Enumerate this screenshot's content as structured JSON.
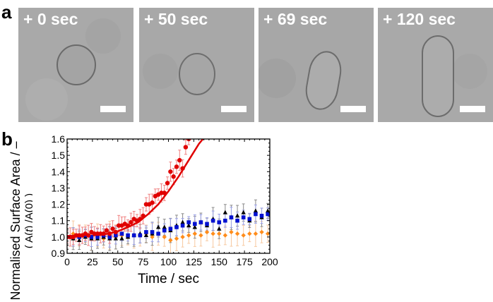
{
  "panel_a": {
    "label": "a",
    "frames": [
      {
        "time_label": "+ 0 sec",
        "shape": "round"
      },
      {
        "time_label": "+ 50 sec",
        "shape": "oval"
      },
      {
        "time_label": "+ 69 sec",
        "shape": "elongated"
      },
      {
        "time_label": "+ 120 sec",
        "shape": "rod"
      }
    ],
    "scale_bar": "white bar (unlabelled)"
  },
  "panel_b": {
    "label": "b",
    "ylabel_line1": "Normalised Surface Area / –",
    "ylabel_line2": "( A(t) /A(0) )",
    "xlabel": "Time / sec"
  },
  "chart_data": {
    "type": "scatter",
    "title": "",
    "xlabel": "Time / sec",
    "ylabel": "Normalised Surface Area / – ( A(t)/A(0) )",
    "xlim": [
      0,
      200
    ],
    "ylim": [
      0.9,
      1.6
    ],
    "xticks": [
      0,
      25,
      50,
      75,
      100,
      125,
      150,
      175,
      200
    ],
    "yticks": [
      0.9,
      1.0,
      1.1,
      1.2,
      1.3,
      1.4,
      1.5,
      1.6
    ],
    "grid": false,
    "legend": "none",
    "series": [
      {
        "name": "red (growing vesicle)",
        "color": "#e00000",
        "marker": "circle",
        "x": [
          0,
          3,
          6,
          9,
          12,
          15,
          18,
          21,
          24,
          27,
          30,
          33,
          36,
          39,
          42,
          45,
          48,
          51,
          54,
          57,
          60,
          63,
          66,
          69,
          72,
          75,
          78,
          81,
          84,
          87,
          90,
          93,
          96,
          99,
          102,
          105,
          108,
          111,
          114,
          117,
          120
        ],
        "y": [
          1.0,
          1.0,
          1.0,
          1.01,
          1.01,
          1.01,
          1.02,
          1.01,
          1.03,
          1.02,
          1.02,
          1.02,
          1.02,
          1.04,
          1.02,
          1.05,
          1.03,
          1.07,
          1.07,
          1.08,
          1.07,
          1.09,
          1.11,
          1.1,
          1.11,
          1.13,
          1.2,
          1.2,
          1.21,
          1.25,
          1.26,
          1.27,
          1.27,
          1.33,
          1.4,
          1.37,
          1.43,
          1.47,
          1.42,
          1.55,
          1.6
        ]
      },
      {
        "name": "red fit",
        "color": "#e00000",
        "type": "line",
        "x": [
          0,
          20,
          40,
          50,
          60,
          70,
          80,
          90,
          100,
          110,
          120,
          130,
          134
        ],
        "y": [
          1.0,
          1.005,
          1.02,
          1.035,
          1.06,
          1.09,
          1.14,
          1.2,
          1.28,
          1.37,
          1.47,
          1.57,
          1.6
        ]
      },
      {
        "name": "blue",
        "color": "#0010d0",
        "marker": "square",
        "x": [
          0,
          6,
          12,
          18,
          24,
          30,
          36,
          42,
          48,
          54,
          60,
          66,
          72,
          78,
          84,
          90,
          96,
          102,
          108,
          114,
          120,
          126,
          132,
          138,
          144,
          150,
          156,
          162,
          168,
          174,
          180,
          186,
          192,
          198
        ],
        "y": [
          1.0,
          1.0,
          1.0,
          1.01,
          1.0,
          1.0,
          1.01,
          1.0,
          1.01,
          1.02,
          1.01,
          1.01,
          1.01,
          1.03,
          1.03,
          1.02,
          1.04,
          1.05,
          1.06,
          1.07,
          1.09,
          1.08,
          1.09,
          1.08,
          1.1,
          1.09,
          1.1,
          1.12,
          1.1,
          1.12,
          1.11,
          1.14,
          1.13,
          1.14
        ]
      },
      {
        "name": "black",
        "color": "#000000",
        "marker": "triangle",
        "x": [
          0,
          6,
          12,
          18,
          24,
          30,
          36,
          42,
          48,
          54,
          60,
          66,
          72,
          78,
          84,
          90,
          96,
          102,
          108,
          114,
          120,
          126,
          132,
          138,
          144,
          150,
          156,
          162,
          168,
          174,
          180,
          186,
          192,
          198
        ],
        "y": [
          1.0,
          0.99,
          0.98,
          1.0,
          0.99,
          0.99,
          1.0,
          0.99,
          0.99,
          0.99,
          1.0,
          1.01,
          1.02,
          1.01,
          1.02,
          1.06,
          1.06,
          1.04,
          1.07,
          1.09,
          1.07,
          1.06,
          1.09,
          1.07,
          1.11,
          1.05,
          1.15,
          1.12,
          1.13,
          1.15,
          1.1,
          1.16,
          1.12,
          1.16
        ]
      },
      {
        "name": "orange",
        "color": "#ff8c1a",
        "marker": "diamond",
        "x": [
          0,
          6,
          12,
          18,
          24,
          30,
          36,
          42,
          48,
          54,
          60,
          66,
          72,
          78,
          84,
          90,
          96,
          102,
          108,
          114,
          120,
          126,
          132,
          138,
          144,
          150,
          156,
          162,
          168,
          174,
          180,
          186,
          192,
          198
        ],
        "y": [
          1.0,
          1.02,
          1.01,
          1.02,
          1.0,
          1.01,
          0.99,
          1.01,
          1.0,
          1.01,
          1.0,
          1.01,
          1.01,
          1.02,
          1.0,
          1.02,
          1.0,
          0.98,
          0.99,
          1.0,
          1.01,
          1.02,
          1.01,
          1.03,
          1.02,
          1.02,
          1.01,
          1.03,
          1.02,
          1.01,
          1.02,
          1.02,
          1.03,
          1.02
        ]
      }
    ]
  }
}
